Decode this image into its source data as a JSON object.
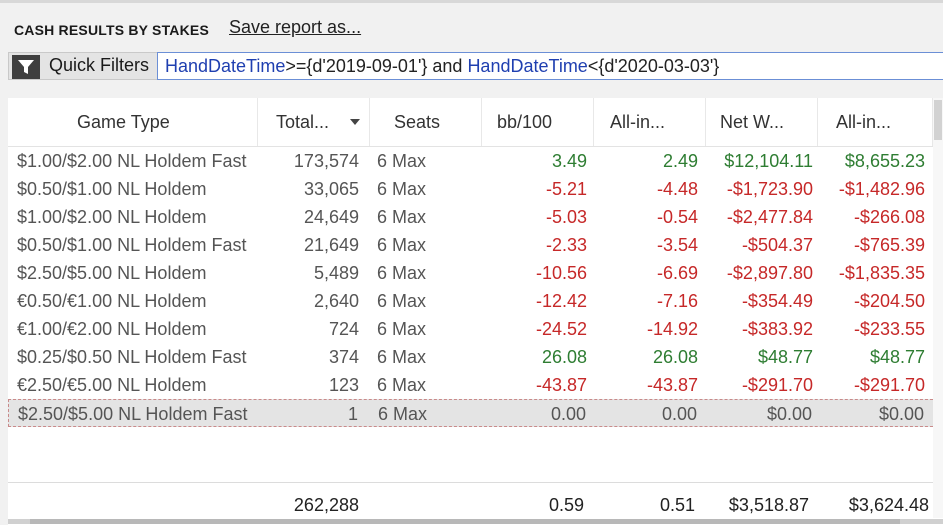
{
  "header": {
    "title": "CASH RESULTS BY STAKES",
    "save_label": "Save report as..."
  },
  "quick_filters": {
    "label": "Quick Filters",
    "expr": [
      {
        "t": "HandDateTime",
        "c": "field"
      },
      {
        "t": ">={d'2019-09-01'} and ",
        "c": "op"
      },
      {
        "t": "HandDateTime",
        "c": "field"
      },
      {
        "t": "<{d'2020-03-03'}",
        "c": "op"
      }
    ]
  },
  "columns": [
    "Game Type",
    "Total...",
    "Seats",
    "bb/100",
    "All-in...",
    "Net W...",
    "All-in..."
  ],
  "rows": [
    {
      "game": "$1.00/$2.00 NL Holdem Fast",
      "hands": "173,574",
      "seats": "6 Max",
      "bb100": "3.49",
      "allin_bb": "2.49",
      "net": "$12,104.11",
      "allin_won": "$8,655.23"
    },
    {
      "game": "$0.50/$1.00 NL Holdem",
      "hands": "33,065",
      "seats": "6 Max",
      "bb100": "-5.21",
      "allin_bb": "-4.48",
      "net": "-$1,723.90",
      "allin_won": "-$1,482.96"
    },
    {
      "game": "$1.00/$2.00 NL Holdem",
      "hands": "24,649",
      "seats": "6 Max",
      "bb100": "-5.03",
      "allin_bb": "-0.54",
      "net": "-$2,477.84",
      "allin_won": "-$266.08"
    },
    {
      "game": "$0.50/$1.00 NL Holdem Fast",
      "hands": "21,649",
      "seats": "6 Max",
      "bb100": "-2.33",
      "allin_bb": "-3.54",
      "net": "-$504.37",
      "allin_won": "-$765.39"
    },
    {
      "game": "$2.50/$5.00 NL Holdem",
      "hands": "5,489",
      "seats": "6 Max",
      "bb100": "-10.56",
      "allin_bb": "-6.69",
      "net": "-$2,897.80",
      "allin_won": "-$1,835.35"
    },
    {
      "game": "€0.50/€1.00 NL Holdem",
      "hands": "2,640",
      "seats": "6 Max",
      "bb100": "-12.42",
      "allin_bb": "-7.16",
      "net": "-$354.49",
      "allin_won": "-$204.50"
    },
    {
      "game": "€1.00/€2.00 NL Holdem",
      "hands": "724",
      "seats": "6 Max",
      "bb100": "-24.52",
      "allin_bb": "-14.92",
      "net": "-$383.92",
      "allin_won": "-$233.55"
    },
    {
      "game": "$0.25/$0.50 NL Holdem Fast",
      "hands": "374",
      "seats": "6 Max",
      "bb100": "26.08",
      "allin_bb": "26.08",
      "net": "$48.77",
      "allin_won": "$48.77"
    },
    {
      "game": "€2.50/€5.00 NL Holdem",
      "hands": "123",
      "seats": "6 Max",
      "bb100": "-43.87",
      "allin_bb": "-43.87",
      "net": "-$291.70",
      "allin_won": "-$291.70"
    },
    {
      "game": "$2.50/$5.00 NL Holdem Fast",
      "hands": "1",
      "seats": "6 Max",
      "bb100": "0.00",
      "allin_bb": "0.00",
      "net": "$0.00",
      "allin_won": "$0.00"
    }
  ],
  "totals": {
    "hands": "262,288",
    "bb100": "0.59",
    "allin_bb": "0.51",
    "net": "$3,518.87",
    "allin_won": "$3,624.48"
  },
  "colors": {
    "negative": "#c62828",
    "positive": "#2e7d32",
    "filter_field": "#1f3fb0"
  },
  "icons": {
    "filter": "funnel-icon",
    "sort": "sort-descending-icon"
  }
}
